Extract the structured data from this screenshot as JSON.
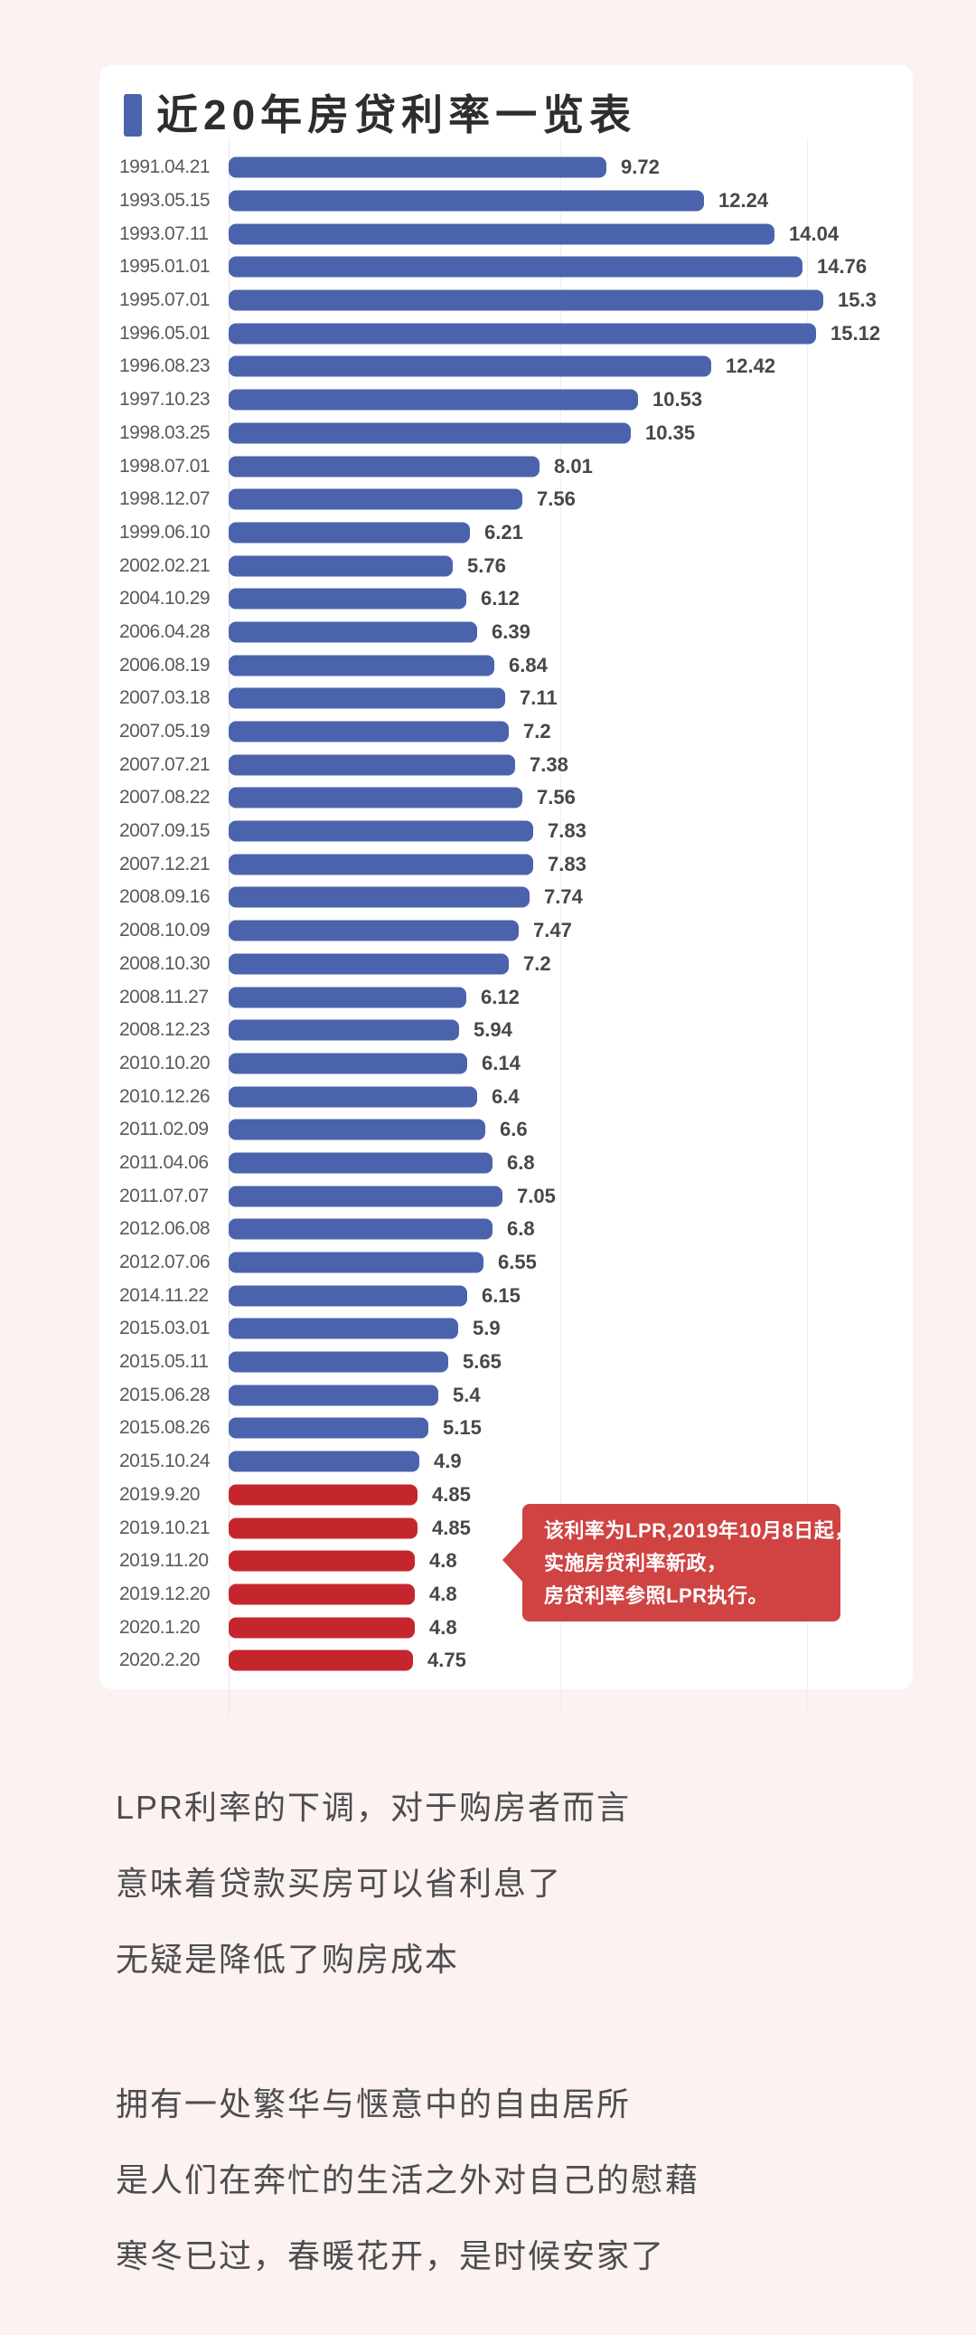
{
  "page": {
    "background_color": "#fbf2f1",
    "card_color": "#ffffff"
  },
  "chart_data": {
    "type": "bar",
    "orientation": "horizontal",
    "title": "近20年房贷利率一览表",
    "value_unit": "%",
    "xlim": [
      0,
      16
    ],
    "grid": "faint-vertical-gridlines",
    "legend_position": "none",
    "bar_colors": {
      "benchmark": "#4a63ac",
      "lpr": "#c5262e"
    },
    "title_marker_color": "#4a63ac",
    "rows": [
      {
        "date": "1991.04.21",
        "value": 9.72,
        "group": "benchmark"
      },
      {
        "date": "1993.05.15",
        "value": 12.24,
        "group": "benchmark"
      },
      {
        "date": "1993.07.11",
        "value": 14.04,
        "group": "benchmark"
      },
      {
        "date": "1995.01.01",
        "value": 14.76,
        "group": "benchmark"
      },
      {
        "date": "1995.07.01",
        "value": 15.3,
        "group": "benchmark"
      },
      {
        "date": "1996.05.01",
        "value": 15.12,
        "group": "benchmark"
      },
      {
        "date": "1996.08.23",
        "value": 12.42,
        "group": "benchmark"
      },
      {
        "date": "1997.10.23",
        "value": 10.53,
        "group": "benchmark"
      },
      {
        "date": "1998.03.25",
        "value": 10.35,
        "group": "benchmark"
      },
      {
        "date": "1998.07.01",
        "value": 8.01,
        "group": "benchmark"
      },
      {
        "date": "1998.12.07",
        "value": 7.56,
        "group": "benchmark"
      },
      {
        "date": "1999.06.10",
        "value": 6.21,
        "group": "benchmark"
      },
      {
        "date": "2002.02.21",
        "value": 5.76,
        "group": "benchmark"
      },
      {
        "date": "2004.10.29",
        "value": 6.12,
        "group": "benchmark"
      },
      {
        "date": "2006.04.28",
        "value": 6.39,
        "group": "benchmark"
      },
      {
        "date": "2006.08.19",
        "value": 6.84,
        "group": "benchmark"
      },
      {
        "date": "2007.03.18",
        "value": 7.11,
        "group": "benchmark"
      },
      {
        "date": "2007.05.19",
        "value": 7.2,
        "group": "benchmark"
      },
      {
        "date": "2007.07.21",
        "value": 7.38,
        "group": "benchmark"
      },
      {
        "date": "2007.08.22",
        "value": 7.56,
        "group": "benchmark"
      },
      {
        "date": "2007.09.15",
        "value": 7.83,
        "group": "benchmark"
      },
      {
        "date": "2007.12.21",
        "value": 7.83,
        "group": "benchmark"
      },
      {
        "date": "2008.09.16",
        "value": 7.74,
        "group": "benchmark"
      },
      {
        "date": "2008.10.09",
        "value": 7.47,
        "group": "benchmark"
      },
      {
        "date": "2008.10.30",
        "value": 7.2,
        "group": "benchmark"
      },
      {
        "date": "2008.11.27",
        "value": 6.12,
        "group": "benchmark"
      },
      {
        "date": "2008.12.23",
        "value": 5.94,
        "group": "benchmark"
      },
      {
        "date": "2010.10.20",
        "value": 6.14,
        "group": "benchmark"
      },
      {
        "date": "2010.12.26",
        "value": 6.4,
        "group": "benchmark"
      },
      {
        "date": "2011.02.09",
        "value": 6.6,
        "group": "benchmark"
      },
      {
        "date": "2011.04.06",
        "value": 6.8,
        "group": "benchmark"
      },
      {
        "date": "2011.07.07",
        "value": 7.05,
        "group": "benchmark"
      },
      {
        "date": "2012.06.08",
        "value": 6.8,
        "group": "benchmark"
      },
      {
        "date": "2012.07.06",
        "value": 6.55,
        "group": "benchmark"
      },
      {
        "date": "2014.11.22",
        "value": 6.15,
        "group": "benchmark"
      },
      {
        "date": "2015.03.01",
        "value": 5.9,
        "group": "benchmark"
      },
      {
        "date": "2015.05.11",
        "value": 5.65,
        "group": "benchmark"
      },
      {
        "date": "2015.06.28",
        "value": 5.4,
        "group": "benchmark"
      },
      {
        "date": "2015.08.26",
        "value": 5.15,
        "group": "benchmark"
      },
      {
        "date": "2015.10.24",
        "value": 4.9,
        "group": "benchmark"
      },
      {
        "date": "2019.9.20",
        "value": 4.85,
        "group": "lpr"
      },
      {
        "date": "2019.10.21",
        "value": 4.85,
        "group": "lpr"
      },
      {
        "date": "2019.11.20",
        "value": 4.8,
        "group": "lpr"
      },
      {
        "date": "2019.12.20",
        "value": 4.8,
        "group": "lpr"
      },
      {
        "date": "2020.1.20",
        "value": 4.8,
        "group": "lpr"
      },
      {
        "date": "2020.2.20",
        "value": 4.75,
        "group": "lpr"
      }
    ]
  },
  "callout": {
    "background_color": "#d04343",
    "text_color": "#ffffff",
    "lines": [
      "该利率为LPR,2019年10月8日起，",
      "实施房贷利率新政，",
      "房贷利率参照LPR执行。"
    ]
  },
  "paragraphs": [
    {
      "lines": [
        "LPR利率的下调，对于购房者而言",
        "意味着贷款买房可以省利息了",
        "无疑是降低了购房成本"
      ]
    },
    {
      "lines": [
        "拥有一处繁华与惬意中的自由居所",
        "是人们在奔忙的生活之外对自己的慰藉",
        "寒冬已过，春暖花开，是时候安家了"
      ]
    }
  ]
}
